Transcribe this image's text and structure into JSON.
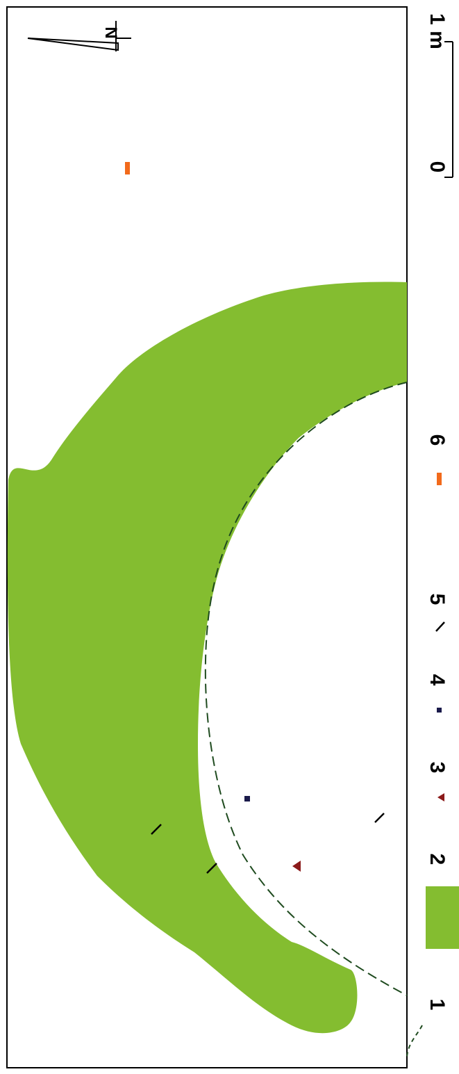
{
  "colors": {
    "zone": "#84bd30",
    "ring_line": "#1f4b1f",
    "triangle": "#8b1a1a",
    "square": "#1a1a4a",
    "stroke_mark": "#000000",
    "bar": "#f26a1b",
    "frame": "#000000"
  },
  "legend": {
    "items": [
      {
        "num": "1",
        "symbol": "dashed-curve"
      },
      {
        "num": "2",
        "symbol": "green-fill"
      },
      {
        "num": "3",
        "symbol": "triangle"
      },
      {
        "num": "4",
        "symbol": "square"
      },
      {
        "num": "5",
        "symbol": "diagonal-stroke"
      },
      {
        "num": "6",
        "symbol": "orange-bar"
      }
    ]
  },
  "scale_bar": {
    "start_label": "0",
    "end_label": "1 m"
  },
  "north_arrow": {
    "label": "N"
  }
}
